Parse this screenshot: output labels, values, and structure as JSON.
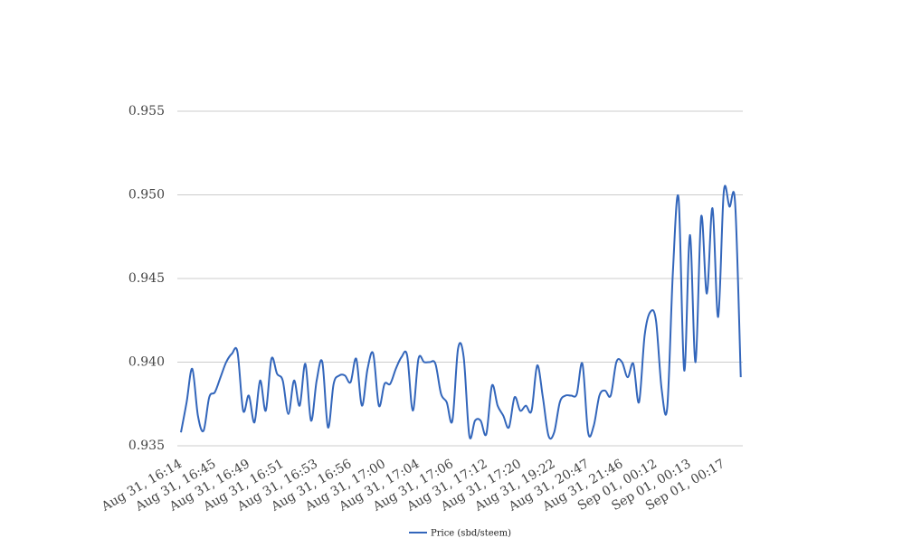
{
  "chart_data": {
    "type": "line",
    "categories": [
      "Aug 31, 16:14",
      null,
      null,
      null,
      null,
      null,
      "Aug 31, 16:45",
      null,
      null,
      null,
      null,
      null,
      "Aug 31, 16:49",
      null,
      null,
      null,
      null,
      null,
      "Aug 31, 16:51",
      null,
      null,
      null,
      null,
      null,
      "Aug 31, 16:53",
      null,
      null,
      null,
      null,
      null,
      "Aug 31, 16:56",
      null,
      null,
      null,
      null,
      null,
      "Aug 31, 17:00",
      null,
      null,
      null,
      null,
      null,
      "Aug 31, 17:04",
      null,
      null,
      null,
      null,
      null,
      "Aug 31, 17:06",
      null,
      null,
      null,
      null,
      null,
      "Aug 31, 17:12",
      null,
      null,
      null,
      null,
      null,
      "Aug 31, 17:20",
      null,
      null,
      null,
      null,
      null,
      "Aug 31, 19:22",
      null,
      null,
      null,
      null,
      null,
      "Aug 31, 20:47",
      null,
      null,
      null,
      null,
      null,
      "Aug 31, 21:46",
      null,
      null,
      null,
      null,
      null,
      "Sep 01, 00:12",
      null,
      null,
      null,
      null,
      null,
      "Sep 01, 00:13",
      null,
      null,
      null,
      null,
      null,
      "Sep 01, 00:17",
      null,
      null,
      null
    ],
    "series": [
      {
        "name": "Price (sbd/steem)",
        "color": "#3366bb",
        "values": [
          0.9358,
          0.9376,
          0.9396,
          0.9368,
          0.9359,
          0.9379,
          0.9382,
          0.9391,
          0.94,
          0.9405,
          0.9406,
          0.9371,
          0.938,
          0.9364,
          0.9389,
          0.9371,
          0.9402,
          0.9393,
          0.9389,
          0.9369,
          0.9389,
          0.9374,
          0.9399,
          0.9365,
          0.9389,
          0.94,
          0.9361,
          0.9387,
          0.9392,
          0.9392,
          0.9388,
          0.9402,
          0.9374,
          0.9396,
          0.9405,
          0.9374,
          0.9387,
          0.9387,
          0.9396,
          0.9403,
          0.9404,
          0.9371,
          0.9402,
          0.94,
          0.94,
          0.9399,
          0.9381,
          0.9376,
          0.9365,
          0.9408,
          0.9403,
          0.9356,
          0.9365,
          0.9365,
          0.9357,
          0.9386,
          0.9374,
          0.9368,
          0.9361,
          0.9379,
          0.9371,
          0.9374,
          0.9371,
          0.9398,
          0.9379,
          0.9356,
          0.9358,
          0.9376,
          0.938,
          0.938,
          0.9381,
          0.9399,
          0.9358,
          0.9362,
          0.938,
          0.9383,
          0.938,
          0.94,
          0.94,
          0.9391,
          0.9399,
          0.9376,
          0.9416,
          0.943,
          0.9425,
          0.9384,
          0.9373,
          0.9454,
          0.9498,
          0.9395,
          0.9476,
          0.94,
          0.9487,
          0.9441,
          0.9492,
          0.9427,
          0.9502,
          0.9493,
          0.9495,
          0.9391
        ]
      }
    ],
    "ylim": [
      0.935,
      0.955
    ],
    "yticks": [
      {
        "value": 0.935,
        "label": "0.935"
      },
      {
        "value": 0.94,
        "label": "0.940"
      },
      {
        "value": 0.945,
        "label": "0.945"
      },
      {
        "value": 0.95,
        "label": "0.950"
      },
      {
        "value": 0.955,
        "label": "0.955"
      }
    ],
    "grid": true,
    "legend": "bottom"
  }
}
